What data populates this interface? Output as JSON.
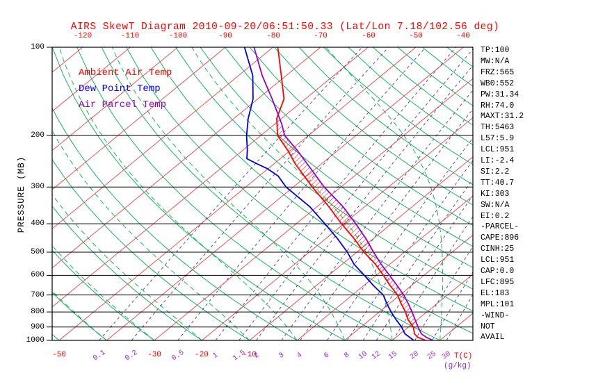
{
  "title": "AIRS SkewT Diagram 2010-09-20/06:51:50.33 (Lat/Lon 7.18/102.56 deg)",
  "legend": {
    "ambient": "Ambient Air Temp",
    "dewpoint": "Dew Point Temp",
    "parcel": "Air Parcel Temp"
  },
  "axes": {
    "pressure_label": "PRESSURE (MB)",
    "pressure_ticks": [
      100,
      200,
      300,
      400,
      500,
      600,
      700,
      800,
      900,
      1000
    ],
    "top_temp_ticks": [
      -120,
      -110,
      -100,
      -90,
      -80,
      -70,
      -60,
      -50,
      -40
    ],
    "bottom_temp_ticks": [
      -50,
      -30,
      -20,
      -10
    ],
    "temp_unit_label": "T(C)",
    "mixing_ratio_ticks": [
      0.1,
      0.2,
      0.5,
      1,
      1.5,
      2,
      3,
      4,
      6,
      8,
      10,
      12,
      15,
      20,
      25,
      30
    ],
    "mixing_unit_label": "(g/kg)"
  },
  "stats": [
    "TP:100",
    "MW:N/A",
    "FRZ:565",
    "WB0:552",
    "PW:31.34",
    "RH:74.0",
    "MAXT:31.2",
    "TH:5463",
    "L57:5.9",
    "LCL:951",
    "LI:-2.4",
    "SI:2.2",
    "TT:40.7",
    "KI:303",
    "SW:N/A",
    "EI:0.2",
    "-PARCEL-",
    "CAPE:896",
    "CINH:25",
    "LCL:951",
    "CAP:0.0",
    "LFC:895",
    "EL:183",
    "MPL:101",
    "-WIND-",
    "NOT",
    "AVAIL"
  ],
  "colors": {
    "title": "#ff0000",
    "isotherm": "#e04545",
    "adiabat": "#00ad50",
    "mixing_line": "#483d8b",
    "mixing_label": "#8a2be2",
    "ambient": "#ff0000",
    "dewpoint": "#0000dd",
    "parcel": "#9400d3",
    "hatch": "#ff0000",
    "stats_text": "#000000",
    "axis": "#000000"
  },
  "chart_data": {
    "type": "line",
    "title": "AIRS SkewT Diagram 2010-09-20/06:51:50.33 (Lat/Lon 7.18/102.56 deg)",
    "pressure_axis": {
      "label": "PRESSURE (MB)",
      "scale": "log",
      "range": [
        100,
        1000
      ],
      "ticks": [
        100,
        200,
        300,
        400,
        500,
        600,
        700,
        800,
        900,
        1000
      ],
      "unit": "mb"
    },
    "temp_axis": {
      "label": "T(C)",
      "skewed": true,
      "top_labels": [
        -120,
        -110,
        -100,
        -90,
        -80,
        -70,
        -60,
        -50,
        -40
      ],
      "bottom_labels": [
        -50,
        -30,
        -20,
        -10
      ],
      "unit": "C"
    },
    "mixing_ratio_axis": {
      "label": "(g/kg)",
      "ticks": [
        0.1,
        0.2,
        0.5,
        1,
        1.5,
        2,
        3,
        4,
        6,
        8,
        10,
        12,
        15,
        20,
        25,
        30
      ]
    },
    "background_grid": {
      "isotherms_c": {
        "min": -120,
        "max": 40,
        "step": 10,
        "style": "red solid"
      },
      "dry_adiabats_c": {
        "min": -60,
        "max": 200,
        "step": 10,
        "style": "green solid"
      },
      "moist_adiabats_c": {
        "min": -40,
        "max": 50,
        "step": 10,
        "style": "green dashed"
      },
      "mixing_ratio_lines_g_kg": [
        0.1,
        0.2,
        0.5,
        1,
        1.5,
        2,
        3,
        4,
        6,
        8,
        10,
        12,
        15,
        20,
        25,
        30
      ],
      "pressure_gridlines_mb": [
        200,
        300,
        400,
        500,
        600,
        700,
        800,
        900,
        1000
      ]
    },
    "cape_hatch_between_pressures": [
      895,
      183
    ],
    "series": [
      {
        "name": "Ambient Air Temp",
        "color": "#ff0000",
        "x_unit": "C",
        "y_unit": "mb",
        "points": [
          [
            1000,
            27
          ],
          [
            975,
            24.5
          ],
          [
            950,
            23
          ],
          [
            925,
            22
          ],
          [
            900,
            21
          ],
          [
            850,
            18
          ],
          [
            800,
            15.5
          ],
          [
            750,
            12.5
          ],
          [
            700,
            9.5
          ],
          [
            650,
            5.5
          ],
          [
            600,
            1.5
          ],
          [
            550,
            -3
          ],
          [
            500,
            -8.5
          ],
          [
            450,
            -14
          ],
          [
            400,
            -20.5
          ],
          [
            350,
            -27.5
          ],
          [
            300,
            -36
          ],
          [
            250,
            -45.5
          ],
          [
            225,
            -50.5
          ],
          [
            200,
            -56.5
          ],
          [
            175,
            -61
          ],
          [
            150,
            -64.5
          ],
          [
            125,
            -71
          ],
          [
            100,
            -79
          ]
        ]
      },
      {
        "name": "Dew Point Temp",
        "color": "#0000dd",
        "x_unit": "C",
        "y_unit": "mb",
        "points": [
          [
            1000,
            24.5
          ],
          [
            950,
            21
          ],
          [
            900,
            18.5
          ],
          [
            850,
            15.5
          ],
          [
            800,
            12.5
          ],
          [
            750,
            9.5
          ],
          [
            700,
            6.5
          ],
          [
            650,
            2
          ],
          [
            600,
            -2.5
          ],
          [
            550,
            -7.5
          ],
          [
            500,
            -12
          ],
          [
            450,
            -17.5
          ],
          [
            400,
            -24
          ],
          [
            350,
            -31.5
          ],
          [
            300,
            -41.5
          ],
          [
            275,
            -46
          ],
          [
            260,
            -50
          ],
          [
            250,
            -53.5
          ],
          [
            240,
            -57
          ],
          [
            225,
            -59
          ],
          [
            200,
            -63
          ],
          [
            175,
            -67
          ],
          [
            150,
            -71
          ],
          [
            125,
            -77
          ],
          [
            100,
            -86
          ]
        ]
      },
      {
        "name": "Air Parcel Temp",
        "color": "#9400d3",
        "x_unit": "C",
        "y_unit": "mb",
        "points": [
          [
            1000,
            28.5
          ],
          [
            975,
            26.3
          ],
          [
            951,
            24.5
          ],
          [
            925,
            23.2
          ],
          [
            900,
            22
          ],
          [
            850,
            19.5
          ],
          [
            800,
            16.9
          ],
          [
            750,
            14
          ],
          [
            700,
            10.8
          ],
          [
            650,
            7
          ],
          [
            600,
            2.8
          ],
          [
            550,
            -1.8
          ],
          [
            500,
            -6.5
          ],
          [
            450,
            -11.5
          ],
          [
            400,
            -17.5
          ],
          [
            350,
            -24.5
          ],
          [
            300,
            -33.5
          ],
          [
            250,
            -43
          ],
          [
            225,
            -48.5
          ],
          [
            200,
            -55
          ],
          [
            183,
            -58.5
          ],
          [
            150,
            -67
          ],
          [
            125,
            -75
          ],
          [
            100,
            -84
          ]
        ]
      }
    ]
  }
}
